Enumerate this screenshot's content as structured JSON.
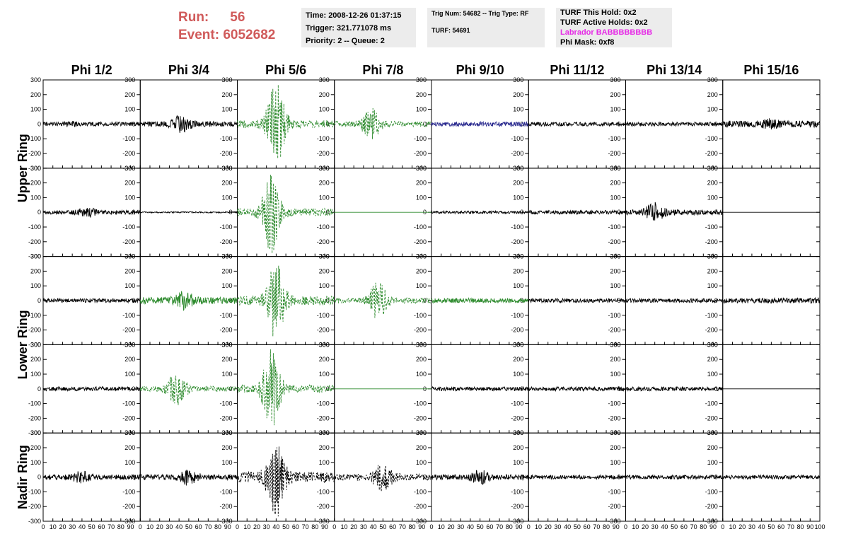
{
  "header": {
    "run_label": "Run:",
    "run_value": "56",
    "event_label": "Event:",
    "event_value": "6052682",
    "time": "Time: 2008-12-26 01:37:15",
    "trigger": "Trigger: 321.771078 ms",
    "priority": "Priority: 2 -- Queue: 2",
    "trig_num": "Trig Num: 54682 -- Trig Type: RF",
    "turf": "TURF: 54691",
    "turf_this_hold": "TURF This Hold: 0x2",
    "turf_active_holds": "TURF Active Holds: 0x2",
    "labrador": "Labrador BABBBBBBBB",
    "phi_mask": "Phi Mask: 0xf8"
  },
  "colors": {
    "run_text": "#d05a5a",
    "labrador_text": "#e62ae6",
    "trace_black": "#000000",
    "trace_green": "#2e8b2e",
    "trace_blue": "#2b2b8f",
    "info_box": "#ececec"
  },
  "chart_data": {
    "type": "line",
    "columns": [
      "Phi 1/2",
      "Phi 3/4",
      "Phi 5/6",
      "Phi 7/8",
      "Phi 9/10",
      "Phi 11/12",
      "Phi 13/14",
      "Phi 15/16"
    ],
    "row_groups": [
      {
        "label": "Upper Ring",
        "rows": 2
      },
      {
        "label": "Lower Ring",
        "rows": 2
      },
      {
        "label": "Nadir Ring",
        "rows": 1
      }
    ],
    "xlim": [
      0,
      100
    ],
    "ylim": [
      -300,
      300
    ],
    "x_tick_labels": [
      "0",
      "10",
      "20",
      "30",
      "40",
      "50",
      "60",
      "70",
      "80",
      "90",
      "100"
    ],
    "y_tick_labels": [
      "-300",
      "-200",
      "-100",
      "0",
      "100",
      "200",
      "300"
    ],
    "grid": false,
    "panels": [
      [
        {
          "color": "black",
          "dashed": false,
          "amplitude": 15,
          "burst_center": 30,
          "burst_amplitude": 10,
          "flat": false
        },
        {
          "color": "black",
          "dashed": false,
          "amplitude": 20,
          "burst_center": 42,
          "burst_amplitude": 60,
          "flat": false
        },
        {
          "color": "green",
          "dashed": true,
          "amplitude": 30,
          "burst_center": 40,
          "burst_amplitude": 300,
          "flat": false
        },
        {
          "color": "green",
          "dashed": true,
          "amplitude": 20,
          "burst_center": 38,
          "burst_amplitude": 110,
          "flat": false
        },
        {
          "color": "blue",
          "dashed": false,
          "amplitude": 18,
          "burst_center": 50,
          "burst_amplitude": 0,
          "flat": false
        },
        {
          "color": "black",
          "dashed": false,
          "amplitude": 15,
          "burst_center": 50,
          "burst_amplitude": 0,
          "flat": false
        },
        {
          "color": "black",
          "dashed": false,
          "amplitude": 15,
          "burst_center": 50,
          "burst_amplitude": 0,
          "flat": false
        },
        {
          "color": "black",
          "dashed": false,
          "amplitude": 25,
          "burst_center": 50,
          "burst_amplitude": 20,
          "flat": false
        }
      ],
      [
        {
          "color": "black",
          "dashed": false,
          "amplitude": 15,
          "burst_center": 45,
          "burst_amplitude": 30,
          "flat": false
        },
        {
          "color": "black",
          "dashed": false,
          "amplitude": 5,
          "burst_center": 50,
          "burst_amplitude": 0,
          "flat": false
        },
        {
          "color": "green",
          "dashed": true,
          "amplitude": 30,
          "burst_center": 35,
          "burst_amplitude": 290,
          "flat": false
        },
        {
          "color": "green",
          "dashed": false,
          "amplitude": 0,
          "burst_center": 50,
          "burst_amplitude": 0,
          "flat": true
        },
        {
          "color": "black",
          "dashed": false,
          "amplitude": 10,
          "burst_center": 50,
          "burst_amplitude": 0,
          "flat": false
        },
        {
          "color": "black",
          "dashed": false,
          "amplitude": 15,
          "burst_center": 50,
          "burst_amplitude": 0,
          "flat": false
        },
        {
          "color": "black",
          "dashed": false,
          "amplitude": 20,
          "burst_center": 30,
          "burst_amplitude": 60,
          "flat": false
        },
        {
          "color": "black",
          "dashed": false,
          "amplitude": 0,
          "burst_center": 50,
          "burst_amplitude": 0,
          "flat": true
        }
      ],
      [
        {
          "color": "black",
          "dashed": false,
          "amplitude": 15,
          "burst_center": 50,
          "burst_amplitude": 0,
          "flat": false
        },
        {
          "color": "green",
          "dashed": false,
          "amplitude": 25,
          "burst_center": 45,
          "burst_amplitude": 60,
          "flat": false
        },
        {
          "color": "green",
          "dashed": true,
          "amplitude": 35,
          "burst_center": 40,
          "burst_amplitude": 270,
          "flat": false
        },
        {
          "color": "green",
          "dashed": true,
          "amplitude": 20,
          "burst_center": 45,
          "burst_amplitude": 130,
          "flat": false
        },
        {
          "color": "green",
          "dashed": false,
          "amplitude": 18,
          "burst_center": 50,
          "burst_amplitude": 0,
          "flat": false
        },
        {
          "color": "black",
          "dashed": false,
          "amplitude": 15,
          "burst_center": 50,
          "burst_amplitude": 0,
          "flat": false
        },
        {
          "color": "black",
          "dashed": false,
          "amplitude": 15,
          "burst_center": 50,
          "burst_amplitude": 0,
          "flat": false
        },
        {
          "color": "black",
          "dashed": false,
          "amplitude": 20,
          "burst_center": 50,
          "burst_amplitude": 0,
          "flat": false
        }
      ],
      [
        {
          "color": "black",
          "dashed": false,
          "amplitude": 15,
          "burst_center": 50,
          "burst_amplitude": 0,
          "flat": false
        },
        {
          "color": "green",
          "dashed": true,
          "amplitude": 20,
          "burst_center": 38,
          "burst_amplitude": 130,
          "flat": false
        },
        {
          "color": "green",
          "dashed": true,
          "amplitude": 30,
          "burst_center": 35,
          "burst_amplitude": 280,
          "flat": false
        },
        {
          "color": "green",
          "dashed": false,
          "amplitude": 0,
          "burst_center": 50,
          "burst_amplitude": 0,
          "flat": true
        },
        {
          "color": "black",
          "dashed": false,
          "amplitude": 15,
          "burst_center": 50,
          "burst_amplitude": 0,
          "flat": false
        },
        {
          "color": "black",
          "dashed": false,
          "amplitude": 15,
          "burst_center": 50,
          "burst_amplitude": 0,
          "flat": false
        },
        {
          "color": "black",
          "dashed": false,
          "amplitude": 15,
          "burst_center": 50,
          "burst_amplitude": 0,
          "flat": false
        },
        {
          "color": "black",
          "dashed": false,
          "amplitude": 0,
          "burst_center": 50,
          "burst_amplitude": 0,
          "flat": true
        }
      ],
      [
        {
          "color": "black",
          "dashed": false,
          "amplitude": 20,
          "burst_center": 40,
          "burst_amplitude": 30,
          "flat": false
        },
        {
          "color": "black",
          "dashed": false,
          "amplitude": 20,
          "burst_center": 50,
          "burst_amplitude": 50,
          "flat": false
        },
        {
          "color": "black",
          "dashed": true,
          "amplitude": 40,
          "burst_center": 40,
          "burst_amplitude": 280,
          "flat": false
        },
        {
          "color": "black",
          "dashed": true,
          "amplitude": 25,
          "burst_center": 50,
          "burst_amplitude": 100,
          "flat": false
        },
        {
          "color": "black",
          "dashed": false,
          "amplitude": 20,
          "burst_center": 50,
          "burst_amplitude": 40,
          "flat": false
        },
        {
          "color": "black",
          "dashed": false,
          "amplitude": 15,
          "burst_center": 50,
          "burst_amplitude": 0,
          "flat": false
        },
        {
          "color": "black",
          "dashed": false,
          "amplitude": 15,
          "burst_center": 50,
          "burst_amplitude": 0,
          "flat": false
        },
        {
          "color": "black",
          "dashed": false,
          "amplitude": 15,
          "burst_center": 50,
          "burst_amplitude": 0,
          "flat": false
        }
      ]
    ]
  }
}
